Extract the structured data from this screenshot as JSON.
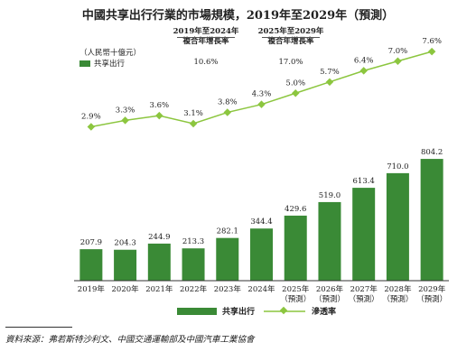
{
  "header": {
    "title": "中國共享出行行業的市場規模，2019年至2029年（預測）",
    "unit": "（人民幣十億元）",
    "cagr_headers": [
      {
        "line1": "2019年至2024年",
        "line2": "複合年增長率"
      },
      {
        "line1": "2025年至2029年",
        "line2": "複合年增長率"
      }
    ],
    "cagr_values": [
      "10.6%",
      "17.0%"
    ]
  },
  "chart_data": {
    "type": "bar",
    "categories": [
      "2019年",
      "2020年",
      "2021年",
      "2022年",
      "2023年",
      "2024年",
      "2025年\n（預測）",
      "2026年\n（預測）",
      "2027年\n（預測）",
      "2028年\n（預測）",
      "2029年\n（預測）"
    ],
    "series": [
      {
        "name": "共享出行",
        "type": "bar",
        "values": [
          207.9,
          204.3,
          244.9,
          213.3,
          282.1,
          344.4,
          429.6,
          519.0,
          613.4,
          710.0,
          804.2
        ],
        "labels": [
          "207.9",
          "204.3",
          "244.9",
          "213.3",
          "282.1",
          "344.4",
          "429.6",
          "519.0",
          "613.4",
          "710.0",
          "804.2"
        ],
        "color": "#3a8a36"
      },
      {
        "name": "滲透率",
        "type": "line",
        "values": [
          2.9,
          3.3,
          3.6,
          3.1,
          3.8,
          4.3,
          5.0,
          5.7,
          6.4,
          7.0,
          7.6
        ],
        "labels": [
          "2.9%",
          "3.3%",
          "3.6%",
          "3.1%",
          "3.8%",
          "4.3%",
          "5.0%",
          "5.7%",
          "6.4%",
          "7.0%",
          "7.6%"
        ],
        "color": "#8cc63f"
      }
    ],
    "ylim": [
      0,
      900
    ],
    "line_ylim": [
      0,
      8
    ],
    "grid": false,
    "legend": "bottom"
  },
  "legend": {
    "bar_label": "共享出行",
    "line_label": "滲透率"
  },
  "source": "資料來源：弗若斯特沙利文、中國交通運輸部及中國汽車工業協會"
}
